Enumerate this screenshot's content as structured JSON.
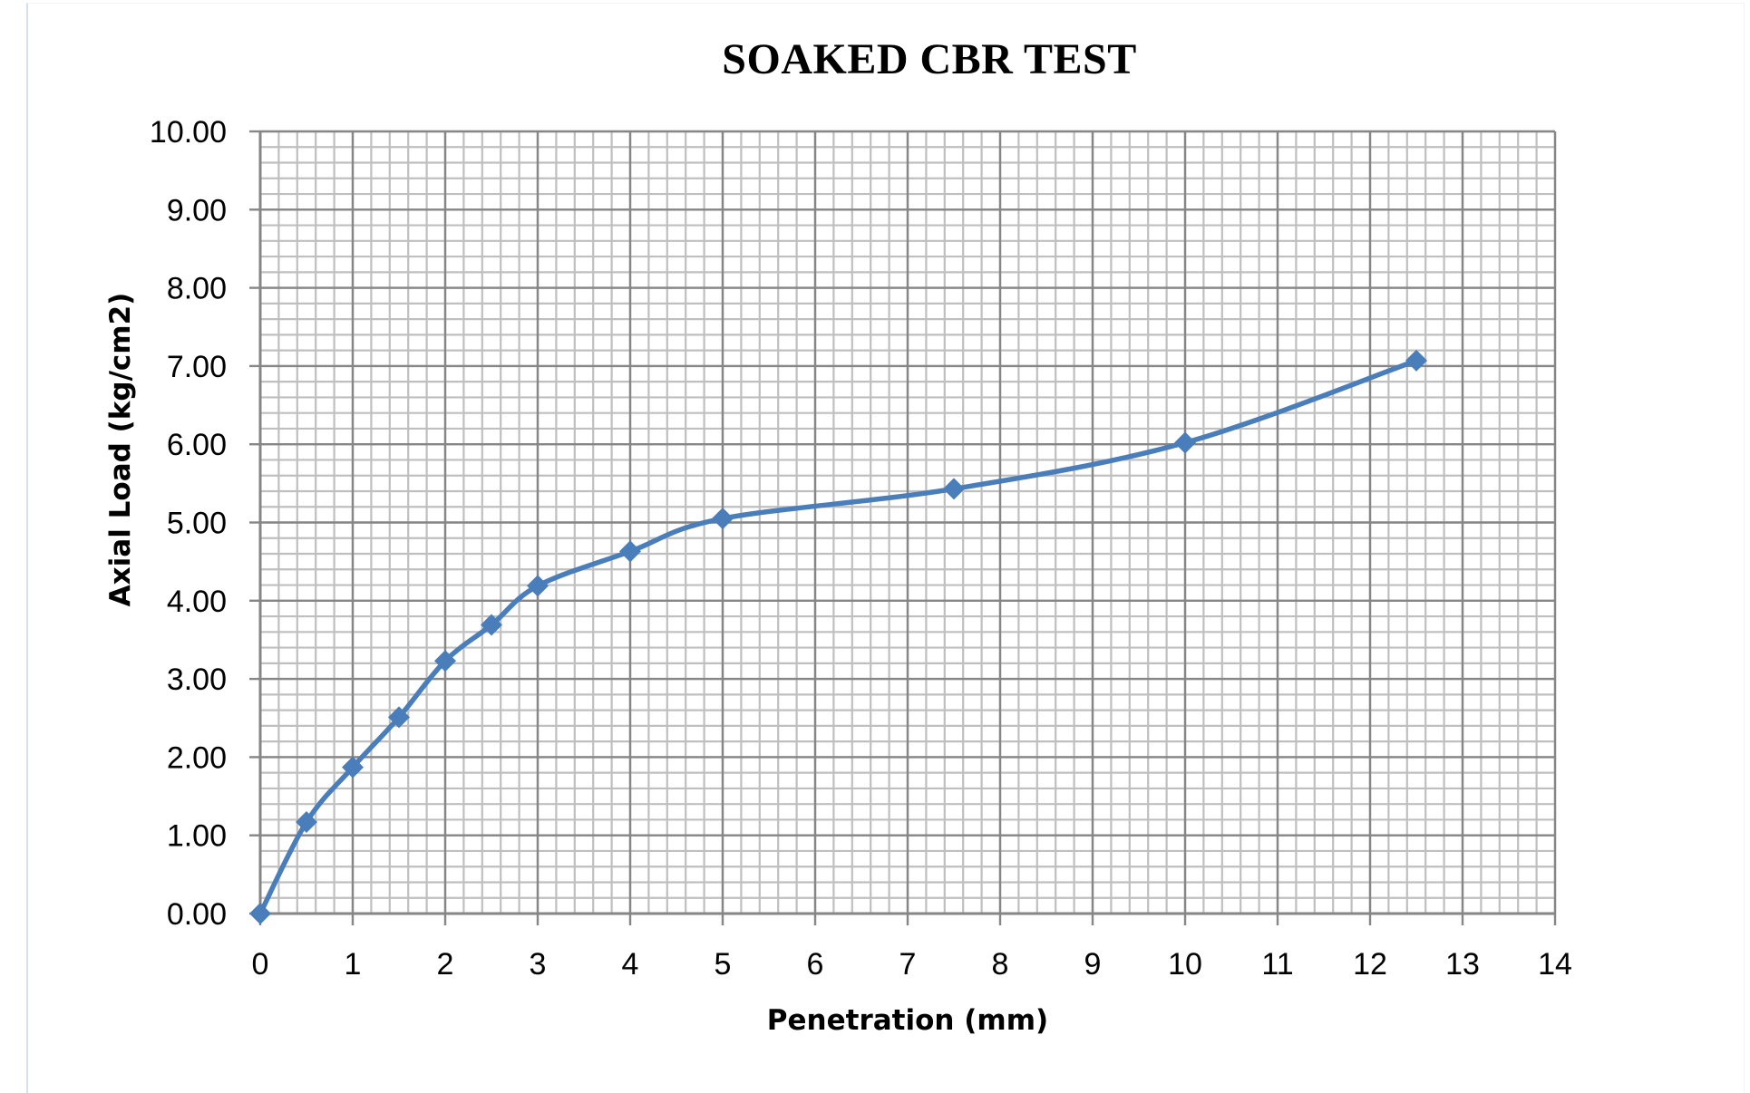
{
  "chart_data": {
    "type": "line",
    "title": "SOAKED CBR TEST",
    "xlabel": "Penetration (mm)",
    "ylabel": "Axial Load (kg/cm2)",
    "xlim": [
      0,
      14
    ],
    "ylim": [
      0,
      10
    ],
    "x_ticks": [
      "0",
      "1",
      "2",
      "3",
      "4",
      "5",
      "6",
      "7",
      "8",
      "9",
      "10",
      "11",
      "12",
      "13",
      "14"
    ],
    "y_ticks": [
      "0.00",
      "1.00",
      "2.00",
      "3.00",
      "4.00",
      "5.00",
      "6.00",
      "7.00",
      "8.00",
      "9.00",
      "10.00"
    ],
    "grid": {
      "major": true,
      "minor": true,
      "minor_x_step": 0.2,
      "minor_y_step": 0.2
    },
    "legend": null,
    "line_style": "smooth",
    "marker": "diamond",
    "series": [
      {
        "name": "Axial Load",
        "color": "#4a7ebb",
        "x": [
          0,
          0.5,
          1,
          1.5,
          2,
          2.5,
          3,
          4,
          5,
          7.5,
          10,
          12.5
        ],
        "values": [
          0.0,
          1.17,
          1.87,
          2.51,
          3.23,
          3.69,
          4.19,
          4.63,
          5.05,
          5.43,
          6.02,
          7.07
        ]
      }
    ]
  },
  "colors": {
    "series": "#4a7ebb",
    "major_grid": "#868686",
    "minor_grid": "#bfbfbf",
    "axis": "#868686"
  }
}
